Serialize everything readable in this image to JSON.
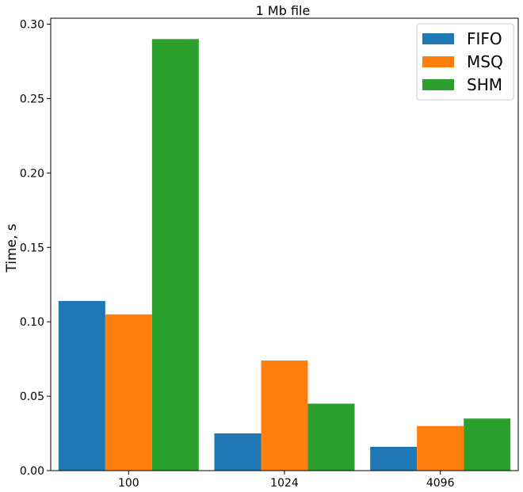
{
  "chart_data": {
    "type": "bar",
    "title": "1 Mb file",
    "xlabel": "",
    "ylabel": "Time, s",
    "categories": [
      "100",
      "1024",
      "4096"
    ],
    "series": [
      {
        "name": "FIFO",
        "color": "#1f77b4",
        "values": [
          0.114,
          0.025,
          0.016
        ]
      },
      {
        "name": "MSQ",
        "color": "#ff7f0e",
        "values": [
          0.105,
          0.074,
          0.03
        ]
      },
      {
        "name": "SHM",
        "color": "#2ca02c",
        "values": [
          0.29,
          0.045,
          0.035
        ]
      }
    ],
    "ylim": [
      0,
      0.304
    ],
    "yticks": [
      "0.00",
      "0.05",
      "0.10",
      "0.15",
      "0.20",
      "0.25",
      "0.30"
    ],
    "grid": false,
    "legend_position": "top-right"
  }
}
